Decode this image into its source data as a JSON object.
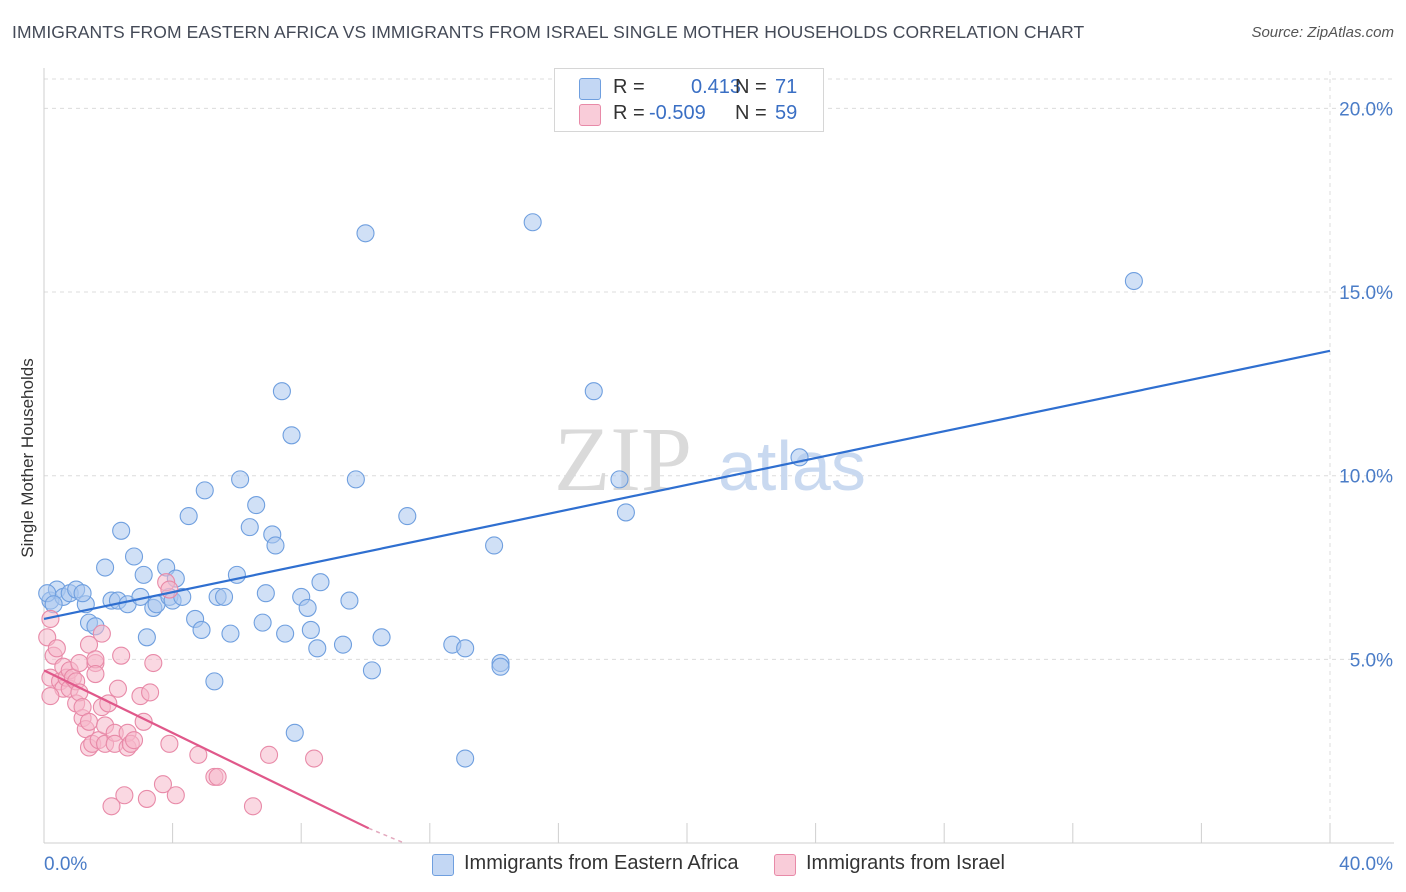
{
  "title": "IMMIGRANTS FROM EASTERN AFRICA VS IMMIGRANTS FROM ISRAEL SINGLE MOTHER HOUSEHOLDS CORRELATION CHART",
  "source": "Source: ZipAtlas.com",
  "watermark": {
    "part1": "ZIP",
    "part2": "atlas"
  },
  "legend": {
    "r_label": "R =",
    "n_label": "N =",
    "rows": [
      {
        "r": "0.413",
        "n": "71",
        "color": "#a9c6ef"
      },
      {
        "r": "-0.509",
        "n": "59",
        "color": "#f6b8cb"
      }
    ]
  },
  "bottom_legend": [
    "Immigrants from Eastern Africa",
    "Immigrants from Israel"
  ],
  "chart_data": {
    "type": "scatter",
    "title": "IMMIGRANTS FROM EASTERN AFRICA VS IMMIGRANTS FROM ISRAEL SINGLE MOTHER HOUSEHOLDS CORRELATION CHART",
    "xlabel": "",
    "ylabel": "Single Mother Households",
    "xlim": [
      0,
      40
    ],
    "ylim": [
      0,
      20.8
    ],
    "x_tick_labels": [
      "0.0%",
      "40.0%"
    ],
    "y_ticks": [
      5,
      10,
      15,
      20
    ],
    "y_tick_labels": [
      "5.0%",
      "10.0%",
      "15.0%",
      "20.0%"
    ],
    "grid": true,
    "legend_position": "top-center",
    "series": [
      {
        "name": "Immigrants from Eastern Africa",
        "color": "#a9c6ef",
        "stroke": "#6f9fdf",
        "trend": {
          "x": [
            0,
            40
          ],
          "y": [
            6.1,
            13.4
          ],
          "color": "#2f6fd0"
        },
        "points": [
          [
            0.2,
            6.6
          ],
          [
            0.4,
            6.9
          ],
          [
            0.6,
            6.7
          ],
          [
            0.8,
            6.8
          ],
          [
            1.0,
            6.9
          ],
          [
            1.3,
            6.5
          ],
          [
            1.4,
            6.0
          ],
          [
            1.6,
            5.9
          ],
          [
            1.9,
            7.5
          ],
          [
            2.1,
            6.6
          ],
          [
            2.3,
            6.6
          ],
          [
            2.4,
            8.5
          ],
          [
            2.6,
            6.5
          ],
          [
            2.8,
            7.8
          ],
          [
            3.0,
            6.7
          ],
          [
            3.1,
            7.3
          ],
          [
            3.2,
            5.6
          ],
          [
            3.4,
            6.4
          ],
          [
            3.5,
            6.5
          ],
          [
            3.8,
            7.5
          ],
          [
            3.9,
            6.7
          ],
          [
            4.0,
            6.6
          ],
          [
            4.1,
            7.2
          ],
          [
            4.3,
            6.7
          ],
          [
            4.5,
            8.9
          ],
          [
            4.7,
            6.1
          ],
          [
            4.9,
            5.8
          ],
          [
            5.0,
            9.6
          ],
          [
            5.3,
            4.4
          ],
          [
            5.4,
            6.7
          ],
          [
            5.6,
            6.7
          ],
          [
            5.8,
            5.7
          ],
          [
            6.0,
            7.3
          ],
          [
            6.1,
            9.9
          ],
          [
            6.4,
            8.6
          ],
          [
            6.6,
            9.2
          ],
          [
            6.8,
            6.0
          ],
          [
            6.9,
            6.8
          ],
          [
            7.1,
            8.4
          ],
          [
            7.2,
            8.1
          ],
          [
            7.4,
            12.3
          ],
          [
            7.5,
            5.7
          ],
          [
            7.7,
            11.1
          ],
          [
            7.8,
            3.0
          ],
          [
            8.0,
            6.7
          ],
          [
            8.2,
            6.4
          ],
          [
            8.3,
            5.8
          ],
          [
            8.5,
            5.3
          ],
          [
            8.6,
            7.1
          ],
          [
            9.3,
            5.4
          ],
          [
            9.5,
            6.6
          ],
          [
            9.7,
            9.9
          ],
          [
            10.0,
            16.6
          ],
          [
            10.2,
            4.7
          ],
          [
            10.5,
            5.6
          ],
          [
            11.3,
            8.9
          ],
          [
            12.7,
            5.4
          ],
          [
            13.1,
            5.3
          ],
          [
            13.1,
            2.3
          ],
          [
            14.0,
            8.1
          ],
          [
            14.2,
            4.9
          ],
          [
            14.2,
            4.8
          ],
          [
            15.2,
            16.9
          ],
          [
            17.1,
            12.3
          ],
          [
            17.9,
            9.9
          ],
          [
            18.1,
            9.0
          ],
          [
            23.5,
            10.5
          ],
          [
            33.9,
            15.3
          ],
          [
            0.1,
            6.8
          ],
          [
            0.3,
            6.5
          ],
          [
            1.2,
            6.8
          ]
        ]
      },
      {
        "name": "Immigrants from Israel",
        "color": "#f6b8cb",
        "stroke": "#e88aa8",
        "trend": {
          "x": [
            0,
            10.1
          ],
          "y": [
            4.7,
            0.4
          ],
          "dash_end_x": 11.2,
          "dash_end_y": 0.0,
          "color": "#e0588a"
        },
        "points": [
          [
            0.1,
            5.6
          ],
          [
            0.2,
            6.1
          ],
          [
            0.2,
            4.5
          ],
          [
            0.3,
            5.1
          ],
          [
            0.4,
            5.3
          ],
          [
            0.5,
            4.4
          ],
          [
            0.6,
            4.2
          ],
          [
            0.6,
            4.8
          ],
          [
            0.7,
            4.5
          ],
          [
            0.8,
            4.7
          ],
          [
            0.8,
            4.2
          ],
          [
            0.9,
            4.5
          ],
          [
            1.0,
            3.8
          ],
          [
            1.0,
            4.4
          ],
          [
            1.1,
            4.1
          ],
          [
            1.1,
            4.9
          ],
          [
            1.2,
            3.4
          ],
          [
            1.2,
            3.7
          ],
          [
            1.3,
            3.1
          ],
          [
            1.4,
            3.3
          ],
          [
            1.4,
            2.6
          ],
          [
            1.4,
            5.4
          ],
          [
            1.5,
            2.7
          ],
          [
            1.6,
            4.9
          ],
          [
            1.6,
            5.0
          ],
          [
            1.6,
            4.6
          ],
          [
            1.7,
            2.8
          ],
          [
            1.8,
            5.7
          ],
          [
            1.8,
            3.7
          ],
          [
            1.9,
            2.7
          ],
          [
            1.9,
            3.2
          ],
          [
            2.0,
            3.8
          ],
          [
            2.1,
            1.0
          ],
          [
            2.2,
            3.0
          ],
          [
            2.2,
            2.7
          ],
          [
            2.3,
            4.2
          ],
          [
            2.4,
            5.1
          ],
          [
            2.5,
            1.3
          ],
          [
            2.6,
            2.6
          ],
          [
            2.6,
            3.0
          ],
          [
            2.7,
            2.7
          ],
          [
            2.8,
            2.8
          ],
          [
            3.0,
            4.0
          ],
          [
            3.1,
            3.3
          ],
          [
            3.2,
            1.2
          ],
          [
            3.3,
            4.1
          ],
          [
            3.4,
            4.9
          ],
          [
            3.7,
            1.6
          ],
          [
            3.8,
            7.1
          ],
          [
            3.9,
            2.7
          ],
          [
            3.9,
            6.9
          ],
          [
            4.1,
            1.3
          ],
          [
            4.8,
            2.4
          ],
          [
            5.3,
            1.8
          ],
          [
            5.4,
            1.8
          ],
          [
            6.5,
            1.0
          ],
          [
            7.0,
            2.4
          ],
          [
            8.4,
            2.3
          ],
          [
            0.2,
            4.0
          ]
        ]
      }
    ]
  }
}
